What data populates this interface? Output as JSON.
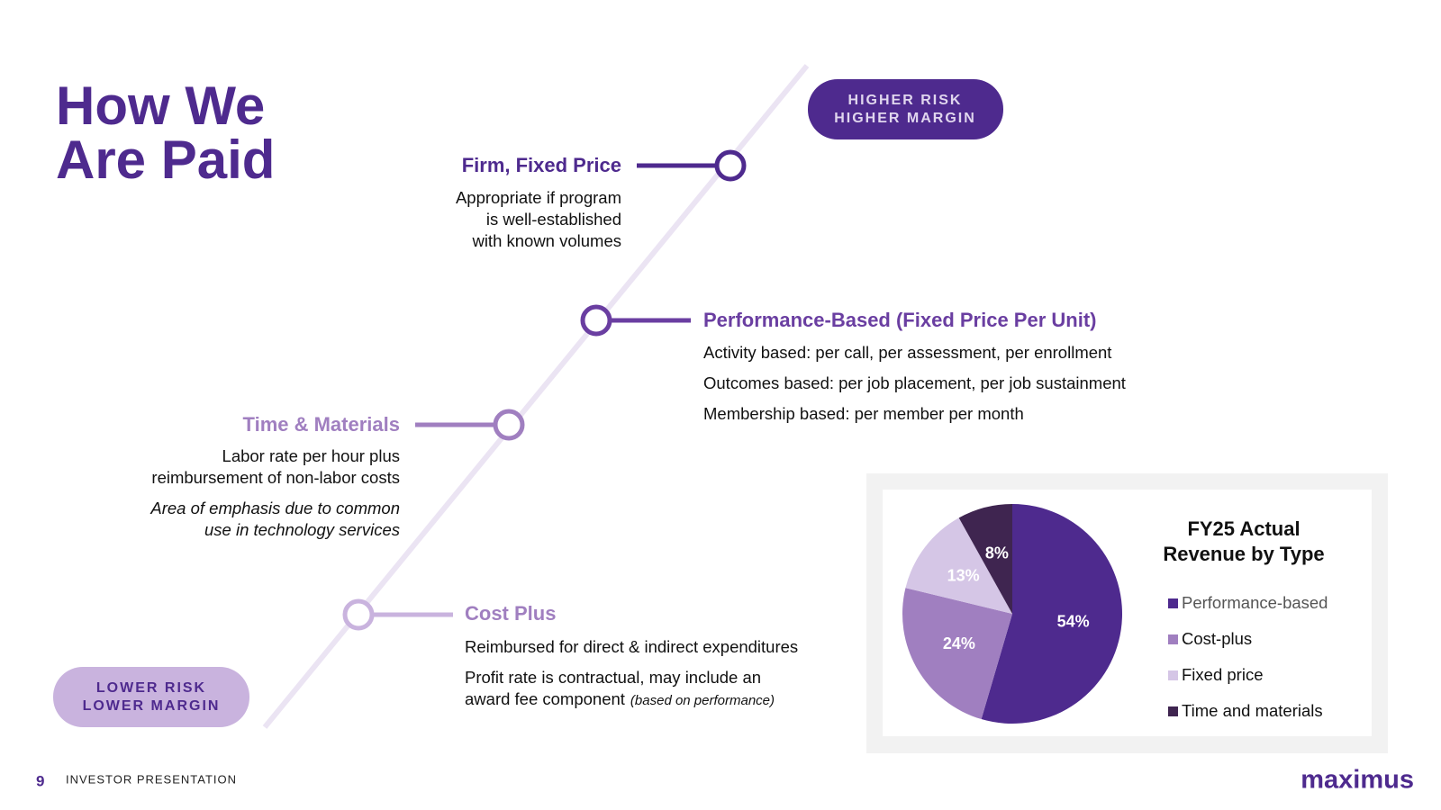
{
  "header": {
    "title_lines": [
      "How We",
      "Are Paid"
    ]
  },
  "badges": {
    "high": [
      "HIGHER RISK",
      "HIGHER MARGIN"
    ],
    "low": [
      "LOWER RISK",
      "LOWER MARGIN"
    ]
  },
  "items": [
    {
      "title": "Firm, Fixed Price",
      "lines": [
        "Appropriate if program",
        "is well-established",
        "with known volumes"
      ]
    },
    {
      "title": "Performance-Based (Fixed Price Per Unit)",
      "lines": [
        "Activity based: per call, per assessment, per enrollment",
        "Outcomes based: per job placement, per job sustainment",
        "Membership based: per member per month"
      ]
    },
    {
      "title": "Time & Materials",
      "lines": [
        "Labor rate per hour plus",
        "reimbursement of non-labor costs"
      ],
      "note_lines": [
        "Area of emphasis due to common",
        "use in technology services"
      ]
    },
    {
      "title": "Cost Plus",
      "lines": [
        "Reimbursed for direct & indirect expenditures",
        "Profit rate is contractual, may include an",
        "award fee component"
      ],
      "aside": "(based on performance)"
    }
  ],
  "footer": {
    "page": "9",
    "label": "INVESTOR PRESENTATION",
    "logo": "maximus"
  },
  "chart_data": {
    "type": "pie",
    "title_lines": [
      "FY25 Actual",
      "Revenue by Type"
    ],
    "categories": [
      "Performance-based",
      "Cost-plus",
      "Fixed price",
      "Time and materials"
    ],
    "values": [
      54,
      24,
      13,
      8
    ],
    "value_labels": [
      "54%",
      "24%",
      "13%",
      "8%"
    ],
    "colors": [
      "#4e2a8e",
      "#a07fc0",
      "#d5c6e6",
      "#3f2550"
    ]
  }
}
